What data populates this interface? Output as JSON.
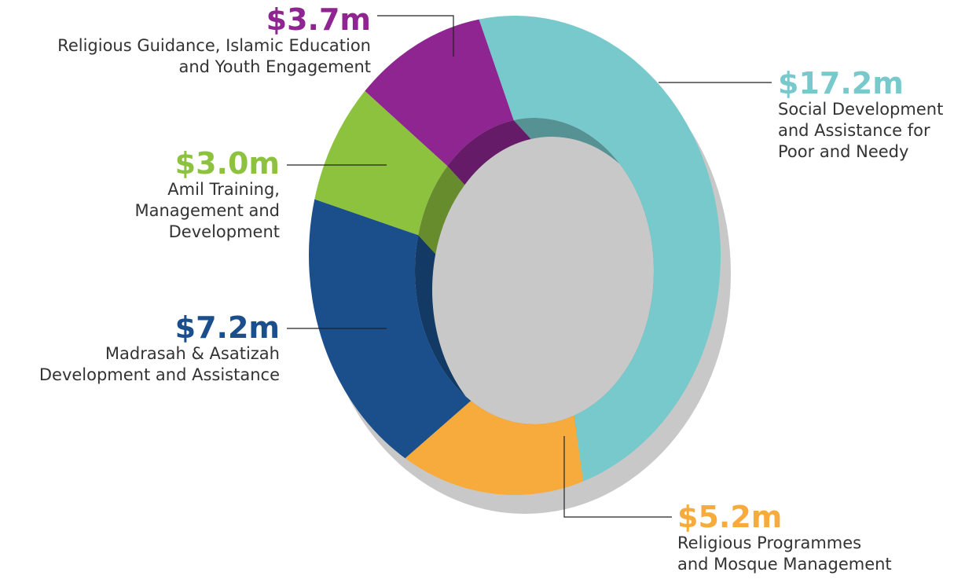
{
  "chart_data": {
    "type": "donut",
    "categories": [
      "Social Development\nand Assistance for\nPoor and Needy",
      "Religious Programmes\nand Mosque Management",
      "Madrasah & Asatizah\nDevelopment and Assistance",
      "Amil Training,\nManagement and\nDevelopment",
      "Religious Guidance, Islamic Education\nand Youth Engagement"
    ],
    "values": [
      17.2,
      5.2,
      7.2,
      3.0,
      3.7
    ],
    "value_labels": [
      "$17.2m",
      "$5.2m",
      "$7.2m",
      "$3.0m",
      "$3.7m"
    ],
    "colors": [
      "#77c9cc",
      "#f6ab3c",
      "#1a4f8c",
      "#8dc23f",
      "#8e2590"
    ]
  }
}
